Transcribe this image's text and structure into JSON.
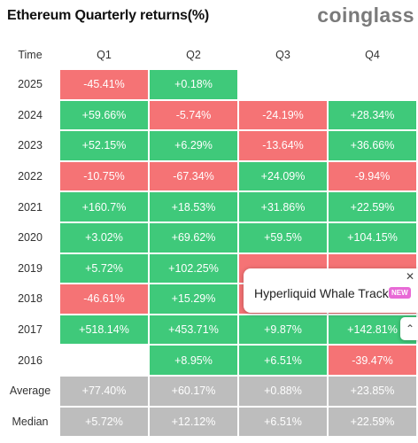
{
  "header": {
    "title": "Ethereum Quarterly returns(%)",
    "logo_text": "coinglass"
  },
  "table": {
    "columns": [
      "Time",
      "Q1",
      "Q2",
      "Q3",
      "Q4"
    ],
    "rows": [
      {
        "year": "2025",
        "cells": [
          "-45.41%",
          "+0.18%",
          "",
          ""
        ],
        "tones": [
          "neg",
          "pos",
          "empty",
          "empty"
        ]
      },
      {
        "year": "2024",
        "cells": [
          "+59.66%",
          "-5.74%",
          "-24.19%",
          "+28.34%"
        ],
        "tones": [
          "pos",
          "neg",
          "neg",
          "pos"
        ]
      },
      {
        "year": "2023",
        "cells": [
          "+52.15%",
          "+6.29%",
          "-13.64%",
          "+36.66%"
        ],
        "tones": [
          "pos",
          "pos",
          "neg",
          "pos"
        ]
      },
      {
        "year": "2022",
        "cells": [
          "-10.75%",
          "-67.34%",
          "+24.09%",
          "-9.94%"
        ],
        "tones": [
          "neg",
          "neg",
          "pos",
          "neg"
        ]
      },
      {
        "year": "2021",
        "cells": [
          "+160.7%",
          "+18.53%",
          "+31.86%",
          "+22.59%"
        ],
        "tones": [
          "pos",
          "pos",
          "pos",
          "pos"
        ]
      },
      {
        "year": "2020",
        "cells": [
          "+3.02%",
          "+69.62%",
          "+59.5%",
          "+104.15%"
        ],
        "tones": [
          "pos",
          "pos",
          "pos",
          "pos"
        ]
      },
      {
        "year": "2019",
        "cells": [
          "+5.72%",
          "+102.25%",
          "",
          ""
        ],
        "tones": [
          "pos",
          "pos",
          "neg",
          "neg"
        ]
      },
      {
        "year": "2018",
        "cells": [
          "-46.61%",
          "+15.29%",
          "",
          ""
        ],
        "tones": [
          "neg",
          "pos",
          "neg",
          "neg"
        ]
      },
      {
        "year": "2017",
        "cells": [
          "+518.14%",
          "+453.71%",
          "+9.87%",
          "+142.81%"
        ],
        "tones": [
          "pos",
          "pos",
          "pos",
          "pos"
        ]
      },
      {
        "year": "2016",
        "cells": [
          "",
          "+8.95%",
          "+6.51%",
          "-39.47%"
        ],
        "tones": [
          "empty",
          "pos",
          "pos",
          "neg"
        ]
      }
    ],
    "summary": [
      {
        "label": "Average",
        "cells": [
          "+77.40%",
          "+60.17%",
          "+0.88%",
          "+23.85%"
        ]
      },
      {
        "label": "Median",
        "cells": [
          "+5.72%",
          "+12.12%",
          "+6.51%",
          "+22.59%"
        ]
      }
    ]
  },
  "popup": {
    "text": "Hyperliquid Whale Tracker",
    "badge": "NEW",
    "close_icon": "close-icon"
  },
  "scroll_top": {
    "icon": "chevron-up-icon"
  },
  "colors": {
    "positive": "#3fc97a",
    "negative": "#f57375",
    "summary": "#bdbdbd",
    "brand": "#7a7a7a"
  }
}
